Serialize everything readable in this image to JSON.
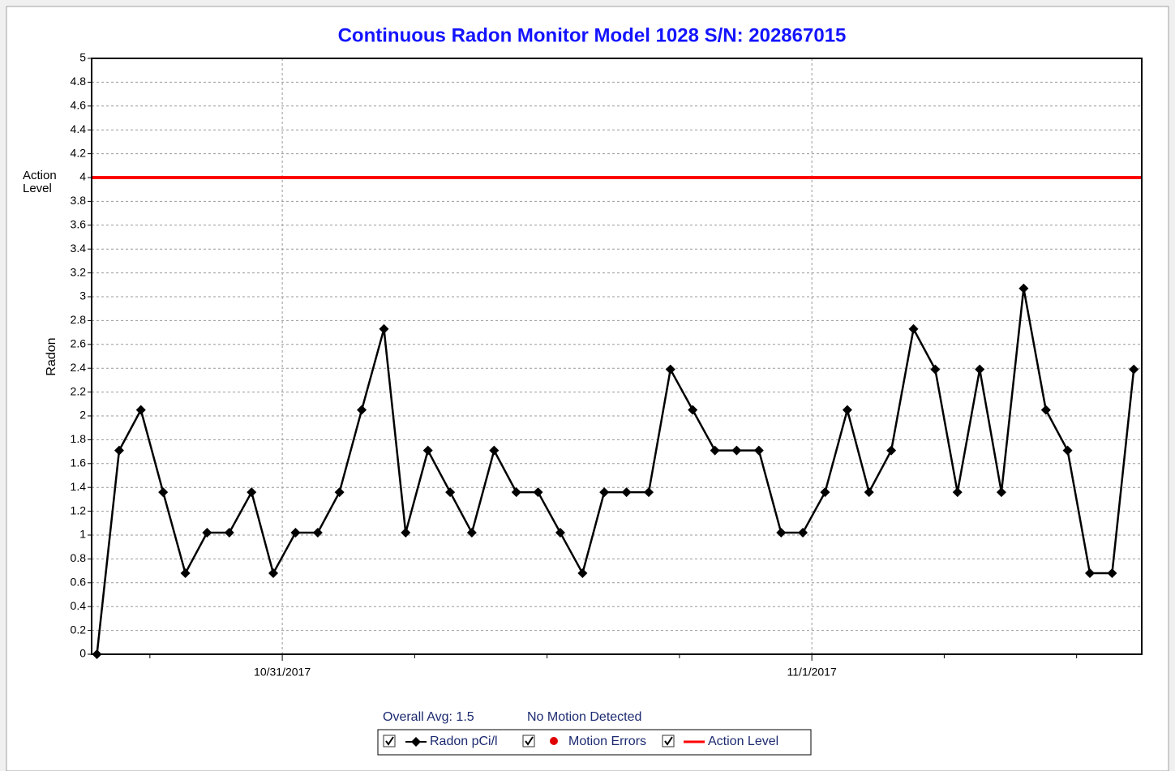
{
  "chart_data": {
    "type": "line",
    "title": "Continuous Radon Monitor Model 1028 S/N: 202867015",
    "ylabel": "Radon",
    "ylim": [
      0,
      5
    ],
    "yticks": [
      0,
      0.2,
      0.4,
      0.6,
      0.8,
      1,
      1.2,
      1.4,
      1.6,
      1.8,
      2,
      2.2,
      2.4,
      2.6,
      2.8,
      3,
      3.2,
      3.4,
      3.6,
      3.8,
      4,
      4.2,
      4.4,
      4.6,
      4.8,
      5
    ],
    "xlim": [
      -0.36,
      1.623
    ],
    "xticks": [
      {
        "value": 0,
        "label": "10/31/2017"
      },
      {
        "value": 1,
        "label": "11/1/2017"
      }
    ],
    "xminorticks": [
      -0.25,
      0.25,
      0.5,
      0.75,
      1.25,
      1.5
    ],
    "grid": true,
    "x": [
      -0.35,
      -0.308,
      -0.267,
      -0.225,
      -0.183,
      -0.142,
      -0.1,
      -0.058,
      -0.017,
      0.025,
      0.067,
      0.108,
      0.15,
      0.192,
      0.233,
      0.275,
      0.317,
      0.358,
      0.4,
      0.442,
      0.483,
      0.525,
      0.567,
      0.608,
      0.65,
      0.692,
      0.733,
      0.775,
      0.817,
      0.858,
      0.9,
      0.942,
      0.983,
      1.025,
      1.067,
      1.108,
      1.15,
      1.192,
      1.233,
      1.275,
      1.317,
      1.358,
      1.4,
      1.442,
      1.483,
      1.525,
      1.567,
      1.608
    ],
    "series": [
      {
        "name": "Radon pCi/l",
        "color": "#000000",
        "values": [
          0,
          1.71,
          2.05,
          1.36,
          0.68,
          1.02,
          1.02,
          1.36,
          0.68,
          1.02,
          1.02,
          1.36,
          2.05,
          2.73,
          1.02,
          1.71,
          1.36,
          1.02,
          1.71,
          1.36,
          1.36,
          1.02,
          0.68,
          1.36,
          1.36,
          1.36,
          2.39,
          2.05,
          1.71,
          1.71,
          1.71,
          1.02,
          1.02,
          1.36,
          2.05,
          1.36,
          1.71,
          2.73,
          2.39,
          1.36,
          2.39,
          1.36,
          3.07,
          2.05,
          1.71,
          0.68,
          0.68,
          2.39
        ]
      }
    ],
    "motion_errors": {
      "name": "Motion Errors",
      "color": "#ff0000"
    },
    "action_level": {
      "name": "Action Level",
      "value": 4,
      "color": "#ff0000",
      "axis_label": "Action Level"
    },
    "annotations": [
      "Overall Avg: 1.5",
      "No Motion Detected"
    ]
  }
}
